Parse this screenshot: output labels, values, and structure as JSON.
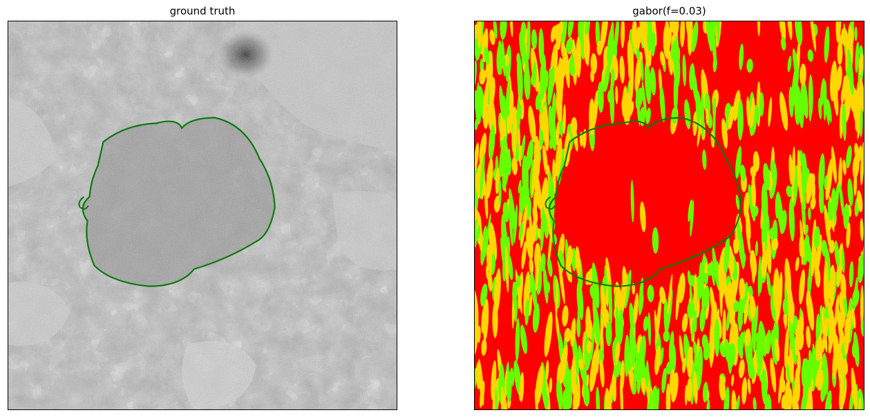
{
  "figure": {
    "panels": [
      {
        "title": "ground truth",
        "content": "grayscale electron micrograph with green nucleus contour"
      },
      {
        "title": "gabor(f=0.03)",
        "content": "gabor filter response heatmap with green nucleus contour"
      }
    ]
  },
  "colors": {
    "contour": "#0b7a0b",
    "gabor_background": "#ff0000",
    "gabor_stripe_green": "#66ff00",
    "gabor_stripe_yellow": "#ffd700",
    "micrograph_base": "#a9a9a9",
    "micrograph_light": "#d6d6d6",
    "micrograph_nucleus": "#969696"
  }
}
